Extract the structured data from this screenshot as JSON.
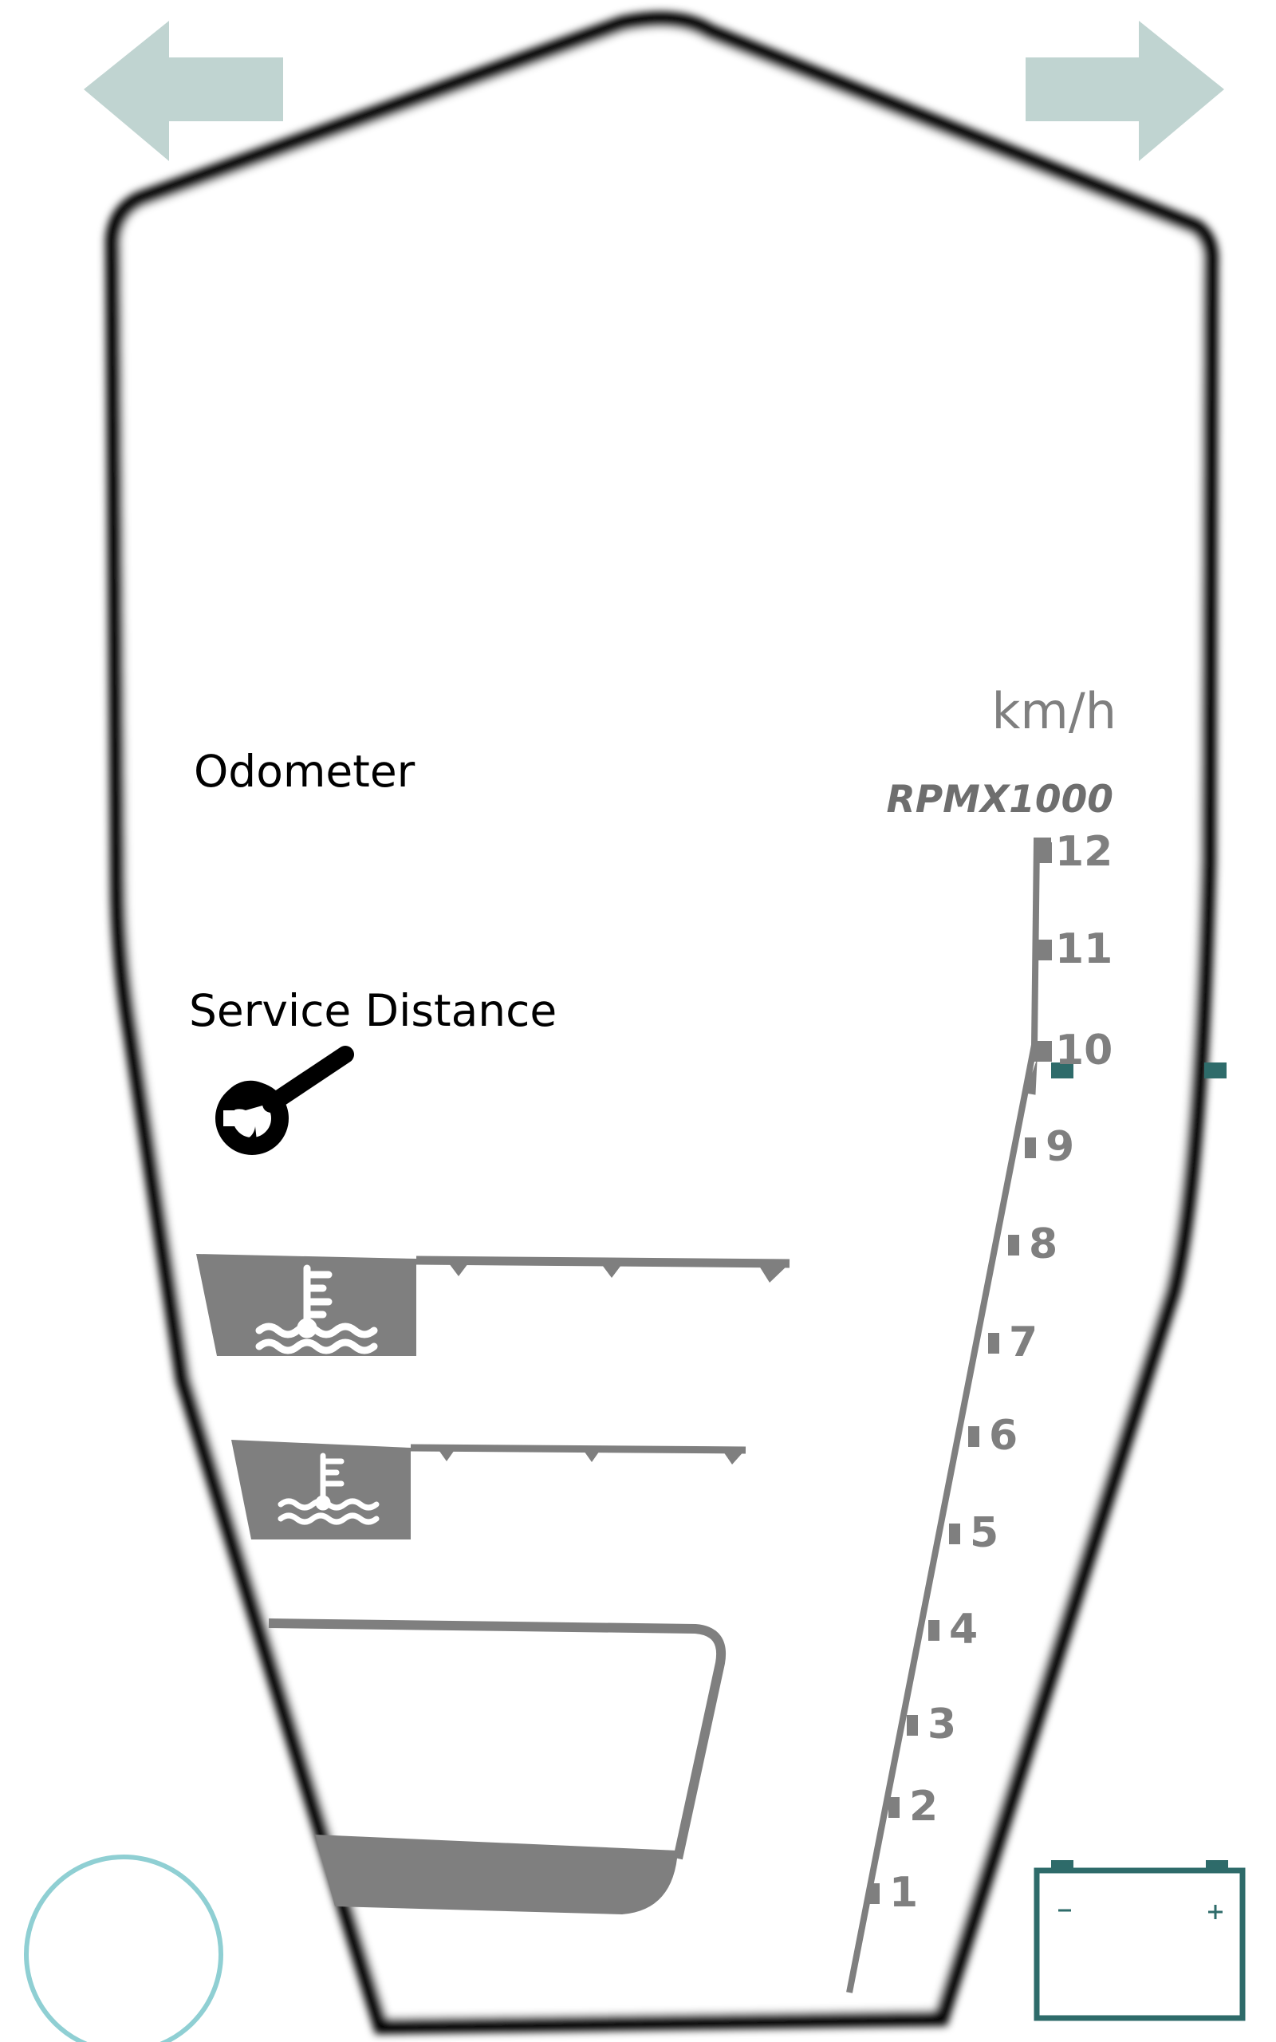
{
  "dashboard": {
    "odometer_label": "Odometer",
    "service_label": "Service Distance",
    "speed_unit": "km/h",
    "rpm_unit": "RPMX1000",
    "rpm_ticks": [
      "1",
      "2",
      "3",
      "4",
      "5",
      "6",
      "7",
      "8",
      "9",
      "10",
      "11",
      "12"
    ]
  },
  "icons": {
    "left_turn": "arrow-left-icon",
    "right_turn": "arrow-right-icon",
    "wrench": "wrench-icon",
    "coolant_temp": "coolant-temperature-icon",
    "battery": "battery-icon",
    "indicator": "circle-indicator-icon"
  },
  "colors": {
    "turn_signal": "#c0d4d1",
    "gauge_gray": "#7f7f7f",
    "battery": "#2e6b6a",
    "circle": "#8fcfd3",
    "frame": "#000000"
  }
}
